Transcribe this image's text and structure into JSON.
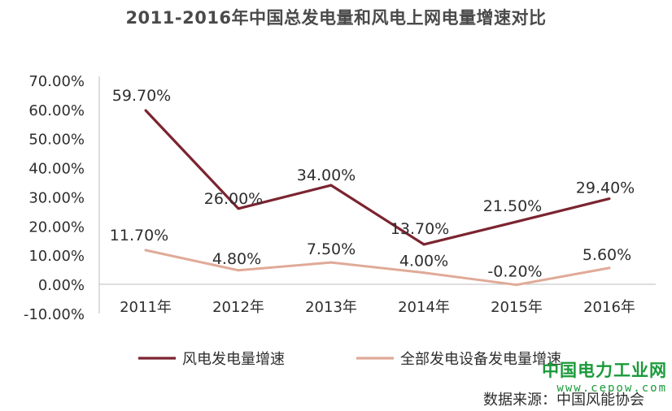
{
  "chart_data": {
    "type": "line",
    "title": "2011-2016年中国总发电量和风电上网电量增速对比",
    "categories": [
      "2011年",
      "2012年",
      "2013年",
      "2014年",
      "2015年",
      "2016年"
    ],
    "y_ticks": [
      "70.00%",
      "60.00%",
      "50.00%",
      "40.00%",
      "30.00%",
      "20.00%",
      "10.00%",
      "0.00%",
      "-10.00%"
    ],
    "ylim": [
      -10,
      70
    ],
    "grid": false,
    "legend_position": "bottom",
    "series": [
      {
        "name": "风电发电量增速",
        "color": "#7b2430",
        "values": [
          59.7,
          26.0,
          34.0,
          13.7,
          21.5,
          29.4
        ],
        "labels": [
          "59.70%",
          "26.00%",
          "34.00%",
          "13.70%",
          "21.50%",
          "29.40%"
        ]
      },
      {
        "name": "全部发电设备发电量增速",
        "color": "#e0aa98",
        "values": [
          11.7,
          4.8,
          7.5,
          4.0,
          -0.2,
          5.6
        ],
        "labels": [
          "11.70%",
          "4.80%",
          "7.50%",
          "4.00%",
          "-0.20%",
          "5.60%"
        ]
      }
    ]
  },
  "watermark": {
    "title": "中国电力工业网",
    "url": "www.cepow.com"
  },
  "source": "数据来源：中国风能协会"
}
